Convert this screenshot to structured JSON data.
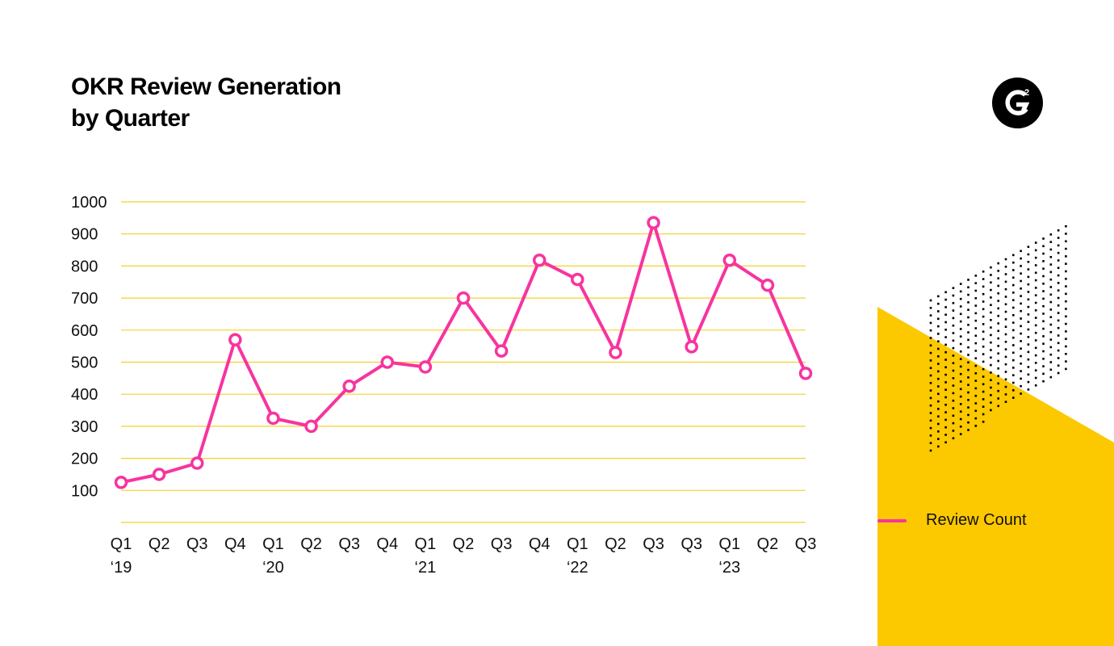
{
  "header": {
    "title_line1": "OKR Review Generation",
    "title_line2": "by Quarter"
  },
  "logo": {
    "icon": "g2-logo-icon",
    "text": "G2"
  },
  "colors": {
    "series": "#F7349F",
    "grid": "#F5D02A",
    "accent_yellow": "#FCC800",
    "text": "#111111"
  },
  "chart_data": {
    "type": "line",
    "title": "OKR Review Generation by Quarter",
    "xlabel": "",
    "ylabel": "",
    "ylim": [
      0,
      1000
    ],
    "yticks": [
      100,
      200,
      300,
      400,
      500,
      600,
      700,
      800,
      900,
      1000
    ],
    "grid": true,
    "legend_position": "right",
    "categories": [
      "Q1 '19",
      "Q2",
      "Q3",
      "Q4",
      "Q1 '20",
      "Q2",
      "Q3",
      "Q4",
      "Q1 '21",
      "Q2",
      "Q3",
      "Q4",
      "Q1 '22",
      "Q2",
      "Q3",
      "Q3",
      "Q1 '23",
      "Q2",
      "Q3"
    ],
    "tick_labels": [
      [
        "Q1",
        "‘19"
      ],
      [
        "Q2",
        ""
      ],
      [
        "Q3",
        ""
      ],
      [
        "Q4",
        ""
      ],
      [
        "Q1",
        "‘20"
      ],
      [
        "Q2",
        ""
      ],
      [
        "Q3",
        ""
      ],
      [
        "Q4",
        ""
      ],
      [
        "Q1",
        "‘21"
      ],
      [
        "Q2",
        ""
      ],
      [
        "Q3",
        ""
      ],
      [
        "Q4",
        ""
      ],
      [
        "Q1",
        "‘22"
      ],
      [
        "Q2",
        ""
      ],
      [
        "Q3",
        ""
      ],
      [
        "Q3",
        ""
      ],
      [
        "Q1",
        "‘23"
      ],
      [
        "Q2",
        ""
      ],
      [
        "Q3",
        ""
      ]
    ],
    "series": [
      {
        "name": "Review Count",
        "values": [
          125,
          150,
          185,
          570,
          325,
          300,
          425,
          500,
          485,
          700,
          535,
          818,
          758,
          530,
          935,
          548,
          818,
          740,
          465
        ]
      }
    ]
  },
  "legend": {
    "label": "Review Count"
  }
}
